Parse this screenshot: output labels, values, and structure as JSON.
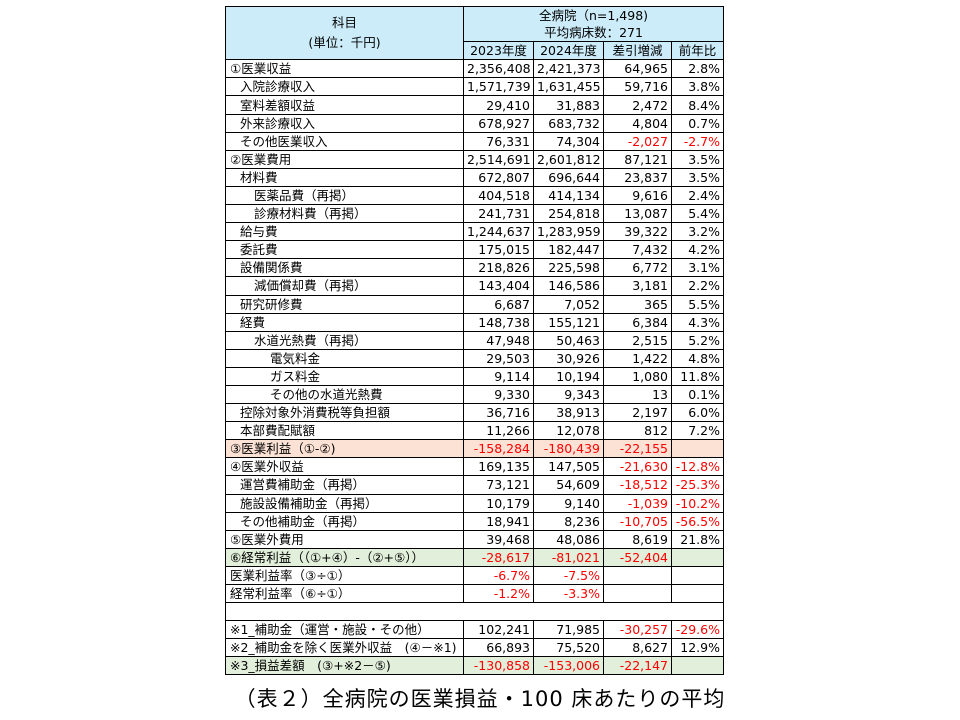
{
  "header": {
    "item_label": "科目",
    "unit_label": "(単位：千円)",
    "group_label": "全病院（n=1,498)",
    "beds_label": "平均病床数：271",
    "columns": [
      "2023年度",
      "2024年度",
      "差引増減",
      "前年比"
    ]
  },
  "rows": [
    {
      "label": "①医業収益",
      "indent": 0,
      "values": [
        "2,356,408",
        "2,421,373",
        "64,965",
        "2.8%"
      ],
      "neg": [
        false,
        false,
        false,
        false
      ]
    },
    {
      "label": "入院診療収入",
      "indent": 1,
      "values": [
        "1,571,739",
        "1,631,455",
        "59,716",
        "3.8%"
      ],
      "neg": [
        false,
        false,
        false,
        false
      ]
    },
    {
      "label": "室料差額収益",
      "indent": 1,
      "values": [
        "29,410",
        "31,883",
        "2,472",
        "8.4%"
      ],
      "neg": [
        false,
        false,
        false,
        false
      ]
    },
    {
      "label": "外来診療収入",
      "indent": 1,
      "values": [
        "678,927",
        "683,732",
        "4,804",
        "0.7%"
      ],
      "neg": [
        false,
        false,
        false,
        false
      ]
    },
    {
      "label": "その他医業収入",
      "indent": 1,
      "values": [
        "76,331",
        "74,304",
        "-2,027",
        "-2.7%"
      ],
      "neg": [
        false,
        false,
        true,
        true
      ]
    },
    {
      "label": "②医業費用",
      "indent": 0,
      "values": [
        "2,514,691",
        "2,601,812",
        "87,121",
        "3.5%"
      ],
      "neg": [
        false,
        false,
        false,
        false
      ]
    },
    {
      "label": "材料費",
      "indent": 1,
      "values": [
        "672,807",
        "696,644",
        "23,837",
        "3.5%"
      ],
      "neg": [
        false,
        false,
        false,
        false
      ]
    },
    {
      "label": "医薬品費（再掲）",
      "indent": 2,
      "values": [
        "404,518",
        "414,134",
        "9,616",
        "2.4%"
      ],
      "neg": [
        false,
        false,
        false,
        false
      ]
    },
    {
      "label": "診療材料費（再掲）",
      "indent": 2,
      "values": [
        "241,731",
        "254,818",
        "13,087",
        "5.4%"
      ],
      "neg": [
        false,
        false,
        false,
        false
      ]
    },
    {
      "label": "給与費",
      "indent": 1,
      "values": [
        "1,244,637",
        "1,283,959",
        "39,322",
        "3.2%"
      ],
      "neg": [
        false,
        false,
        false,
        false
      ]
    },
    {
      "label": "委託費",
      "indent": 1,
      "values": [
        "175,015",
        "182,447",
        "7,432",
        "4.2%"
      ],
      "neg": [
        false,
        false,
        false,
        false
      ]
    },
    {
      "label": "設備関係費",
      "indent": 1,
      "values": [
        "218,826",
        "225,598",
        "6,772",
        "3.1%"
      ],
      "neg": [
        false,
        false,
        false,
        false
      ]
    },
    {
      "label": "減価償却費（再掲）",
      "indent": 2,
      "values": [
        "143,404",
        "146,586",
        "3,181",
        "2.2%"
      ],
      "neg": [
        false,
        false,
        false,
        false
      ]
    },
    {
      "label": "研究研修費",
      "indent": 1,
      "values": [
        "6,687",
        "7,052",
        "365",
        "5.5%"
      ],
      "neg": [
        false,
        false,
        false,
        false
      ]
    },
    {
      "label": "経費",
      "indent": 1,
      "values": [
        "148,738",
        "155,121",
        "6,384",
        "4.3%"
      ],
      "neg": [
        false,
        false,
        false,
        false
      ]
    },
    {
      "label": "水道光熱費（再掲）",
      "indent": 2,
      "values": [
        "47,948",
        "50,463",
        "2,515",
        "5.2%"
      ],
      "neg": [
        false,
        false,
        false,
        false
      ]
    },
    {
      "label": "電気料金",
      "indent": 3,
      "values": [
        "29,503",
        "30,926",
        "1,422",
        "4.8%"
      ],
      "neg": [
        false,
        false,
        false,
        false
      ]
    },
    {
      "label": "ガス料金",
      "indent": 3,
      "values": [
        "9,114",
        "10,194",
        "1,080",
        "11.8%"
      ],
      "neg": [
        false,
        false,
        false,
        false
      ]
    },
    {
      "label": "その他の水道光熱費",
      "indent": 3,
      "values": [
        "9,330",
        "9,343",
        "13",
        "0.1%"
      ],
      "neg": [
        false,
        false,
        false,
        false
      ]
    },
    {
      "label": "控除対象外消費税等負担額",
      "indent": 1,
      "values": [
        "36,716",
        "38,913",
        "2,197",
        "6.0%"
      ],
      "neg": [
        false,
        false,
        false,
        false
      ]
    },
    {
      "label": "本部費配賦額",
      "indent": 1,
      "values": [
        "11,266",
        "12,078",
        "812",
        "7.2%"
      ],
      "neg": [
        false,
        false,
        false,
        false
      ]
    },
    {
      "label": "③医業利益（①-②)",
      "indent": 0,
      "values": [
        "-158,284",
        "-180,439",
        "-22,155",
        ""
      ],
      "neg": [
        true,
        true,
        true,
        false
      ],
      "style": "bg-orange"
    },
    {
      "label": "④医業外収益",
      "indent": 0,
      "values": [
        "169,135",
        "147,505",
        "-21,630",
        "-12.8%"
      ],
      "neg": [
        false,
        false,
        true,
        true
      ]
    },
    {
      "label": "運営費補助金（再掲）",
      "indent": 1,
      "values": [
        "73,121",
        "54,609",
        "-18,512",
        "-25.3%"
      ],
      "neg": [
        false,
        false,
        true,
        true
      ]
    },
    {
      "label": "施設設備補助金（再掲）",
      "indent": 1,
      "values": [
        "10,179",
        "9,140",
        "-1,039",
        "-10.2%"
      ],
      "neg": [
        false,
        false,
        true,
        true
      ]
    },
    {
      "label": "その他補助金（再掲）",
      "indent": 1,
      "values": [
        "18,941",
        "8,236",
        "-10,705",
        "-56.5%"
      ],
      "neg": [
        false,
        false,
        true,
        true
      ]
    },
    {
      "label": "⑤医業外費用",
      "indent": 0,
      "values": [
        "39,468",
        "48,086",
        "8,619",
        "21.8%"
      ],
      "neg": [
        false,
        false,
        false,
        false
      ]
    },
    {
      "label": "⑥経常利益（（①+④）-（②+⑤））",
      "indent": 0,
      "values": [
        "-28,617",
        "-81,021",
        "-52,404",
        ""
      ],
      "neg": [
        true,
        true,
        true,
        false
      ],
      "style": "bg-green dblb"
    },
    {
      "label": "医業利益率（③÷①）",
      "indent": 0,
      "values": [
        "-6.7%",
        "-7.5%",
        "",
        ""
      ],
      "neg": [
        true,
        true,
        false,
        false
      ]
    },
    {
      "label": "経常利益率（⑥÷①）",
      "indent": 0,
      "values": [
        "-1.2%",
        "-3.3%",
        "",
        ""
      ],
      "neg": [
        true,
        true,
        false,
        false
      ]
    },
    {
      "gap": true
    },
    {
      "label": "※1_補助金（運営・施設・その他）",
      "indent": 0,
      "values": [
        "102,241",
        "71,985",
        "-30,257",
        "-29.6%"
      ],
      "neg": [
        false,
        false,
        true,
        true
      ]
    },
    {
      "label": "※2_補助金を除く医業外収益　(④－※1)",
      "indent": 0,
      "values": [
        "66,893",
        "75,520",
        "8,627",
        "12.9%"
      ],
      "neg": [
        false,
        false,
        false,
        false
      ]
    },
    {
      "label": "※3_損益差額　(③+※2－⑤)",
      "indent": 0,
      "values": [
        "-130,858",
        "-153,006",
        "-22,147",
        ""
      ],
      "neg": [
        true,
        true,
        true,
        false
      ],
      "style": "bg-green"
    }
  ],
  "caption": "（表２）全病院の医業損益・100 床あたりの平均"
}
